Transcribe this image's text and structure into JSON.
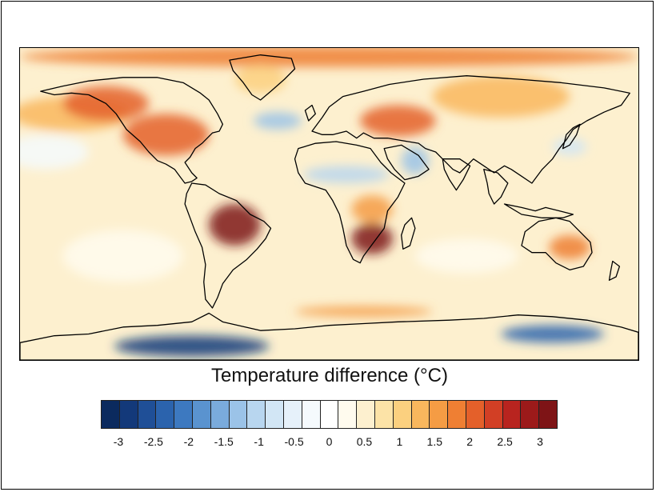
{
  "legend": {
    "title": "Temperature difference (°C)",
    "bins": [
      {
        "from": -3.25,
        "to": -3.0,
        "color": "#0b2a5e"
      },
      {
        "from": -3.0,
        "to": -2.75,
        "color": "#13397a"
      },
      {
        "from": -2.75,
        "to": -2.5,
        "color": "#1f4f97"
      },
      {
        "from": -2.5,
        "to": -2.25,
        "color": "#2b63ad"
      },
      {
        "from": -2.25,
        "to": -2.0,
        "color": "#3d79c0"
      },
      {
        "from": -2.0,
        "to": -1.75,
        "color": "#5a93cf"
      },
      {
        "from": -1.75,
        "to": -1.5,
        "color": "#7aabdc"
      },
      {
        "from": -1.5,
        "to": -1.25,
        "color": "#9bc3e8"
      },
      {
        "from": -1.25,
        "to": -1.0,
        "color": "#b8d6ef"
      },
      {
        "from": -1.0,
        "to": -0.75,
        "color": "#d2e6f5"
      },
      {
        "from": -0.75,
        "to": -0.5,
        "color": "#e6f1fa"
      },
      {
        "from": -0.5,
        "to": -0.25,
        "color": "#f5fafd"
      },
      {
        "from": -0.25,
        "to": 0.25,
        "color": "#ffffff"
      },
      {
        "from": 0.25,
        "to": 0.5,
        "color": "#fffbee"
      },
      {
        "from": 0.5,
        "to": 0.75,
        "color": "#fdf0cf"
      },
      {
        "from": 0.75,
        "to": 1.0,
        "color": "#fce3a7"
      },
      {
        "from": 1.0,
        "to": 1.25,
        "color": "#fbd07f"
      },
      {
        "from": 1.25,
        "to": 1.5,
        "color": "#f9b75d"
      },
      {
        "from": 1.5,
        "to": 1.75,
        "color": "#f59c44"
      },
      {
        "from": 1.75,
        "to": 2.0,
        "color": "#ef7f33"
      },
      {
        "from": 2.0,
        "to": 2.25,
        "color": "#e4602a"
      },
      {
        "from": 2.25,
        "to": 2.5,
        "color": "#d23f25"
      },
      {
        "from": 2.5,
        "to": 2.75,
        "color": "#b8241f"
      },
      {
        "from": 2.75,
        "to": 3.0,
        "color": "#9c1a1a"
      },
      {
        "from": 3.0,
        "to": 3.25,
        "color": "#7e1416"
      }
    ],
    "ticks": [
      "-3",
      "-2.5",
      "-2",
      "-1.5",
      "-1",
      "-0.5",
      "0",
      "0.5",
      "1",
      "1.5",
      "2",
      "2.5",
      "3"
    ],
    "tick_values": [
      -3,
      -2.5,
      -2,
      -1.5,
      -1,
      -0.5,
      0,
      0.5,
      1,
      1.5,
      2,
      2.5,
      3
    ],
    "range": [
      -3.25,
      3.25
    ]
  },
  "map": {
    "projection": "equirectangular",
    "extent": {
      "lon": [
        -180,
        180
      ],
      "lat": [
        -90,
        90
      ]
    },
    "background_anomaly": 0.6,
    "anomalies": [
      {
        "region": "arctic-band",
        "lon": 0,
        "lat": 85,
        "rlon": 180,
        "rlat": 6,
        "value": 1.8
      },
      {
        "region": "north-pacific-warm",
        "lon": -150,
        "lat": 52,
        "rlon": 35,
        "rlat": 10,
        "value": 1.3
      },
      {
        "region": "central-north-pacific-cool",
        "lon": -165,
        "lat": 30,
        "rlon": 25,
        "rlat": 10,
        "value": -0.3
      },
      {
        "region": "alaska-canada-warm",
        "lon": -130,
        "lat": 58,
        "rlon": 25,
        "rlat": 10,
        "value": 2.0
      },
      {
        "region": "united-states-warm",
        "lon": -95,
        "lat": 40,
        "rlon": 25,
        "rlat": 12,
        "value": 2.2
      },
      {
        "region": "greenland-warm",
        "lon": -40,
        "lat": 72,
        "rlon": 15,
        "rlat": 8,
        "value": 1.2
      },
      {
        "region": "north-atlantic-cool",
        "lon": -30,
        "lat": 48,
        "rlon": 14,
        "rlat": 5,
        "value": -1.4
      },
      {
        "region": "sahara-cool",
        "lon": 10,
        "lat": 17,
        "rlon": 25,
        "rlat": 5,
        "value": -1.2
      },
      {
        "region": "arabia-cool",
        "lon": 50,
        "lat": 25,
        "rlon": 8,
        "rlat": 8,
        "value": -1.3
      },
      {
        "region": "eastern-europe-warm",
        "lon": 40,
        "lat": 48,
        "rlon": 22,
        "rlat": 9,
        "value": 2.2
      },
      {
        "region": "siberia-warm",
        "lon": 100,
        "lat": 62,
        "rlon": 40,
        "rlat": 12,
        "value": 1.3
      },
      {
        "region": "east-asia-cool",
        "lon": 140,
        "lat": 33,
        "rlon": 10,
        "rlat": 5,
        "value": -0.9
      },
      {
        "region": "amazon-warm",
        "lon": -55,
        "lat": -12,
        "rlon": 15,
        "rlat": 12,
        "value": 3.0
      },
      {
        "region": "central-africa-warm",
        "lon": 25,
        "lat": -3,
        "rlon": 12,
        "rlat": 8,
        "value": 1.6
      },
      {
        "region": "southern-africa-warm",
        "lon": 25,
        "lat": -20,
        "rlon": 12,
        "rlat": 9,
        "value": 3.2
      },
      {
        "region": "australia-warm",
        "lon": 140,
        "lat": -25,
        "rlon": 12,
        "rlat": 7,
        "value": 1.8
      },
      {
        "region": "southern-ocean-warm",
        "lon": 20,
        "lat": -62,
        "rlon": 40,
        "rlat": 3,
        "value": 1.7
      },
      {
        "region": "antarctica-west-cool",
        "lon": -80,
        "lat": -82,
        "rlon": 45,
        "rlat": 6,
        "value": -2.8
      },
      {
        "region": "antarctica-east-cool",
        "lon": 130,
        "lat": -75,
        "rlon": 30,
        "rlat": 5,
        "value": -2.5
      },
      {
        "region": "indian-ocean-light",
        "lon": 80,
        "lat": -30,
        "rlon": 30,
        "rlat": 10,
        "value": 0.3
      },
      {
        "region": "south-pacific-light",
        "lon": -120,
        "lat": -30,
        "rlon": 35,
        "rlat": 15,
        "value": 0.3
      }
    ]
  }
}
